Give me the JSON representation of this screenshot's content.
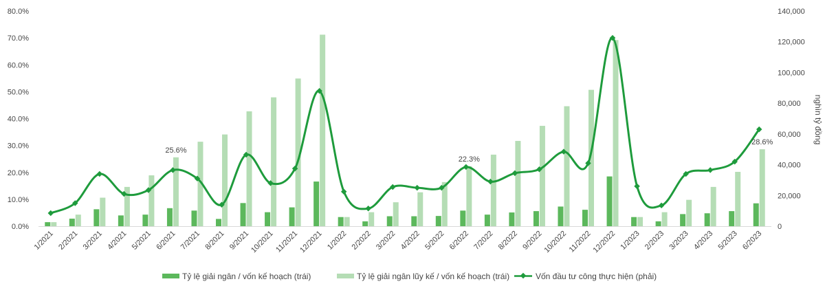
{
  "chart_data": {
    "type": "bar+line",
    "categories": [
      "1/2021",
      "2/2021",
      "3/2021",
      "4/2021",
      "5/2021",
      "6/2021",
      "7/2021",
      "8/2021",
      "9/2021",
      "10/2021",
      "11/2021",
      "12/2021",
      "1/2022",
      "2/2022",
      "3/2022",
      "4/2022",
      "5/2022",
      "6/2022",
      "7/2022",
      "8/2022",
      "9/2022",
      "10/2022",
      "11/2022",
      "12/2022",
      "1/2023",
      "2/2023",
      "3/2023",
      "4/2023",
      "5/2023",
      "6/2023"
    ],
    "series": [
      {
        "name": "Tỷ lệ giải ngân / vốn kế hoạch (trái)",
        "kind": "bar",
        "axis": "left",
        "color": "#5cb85c",
        "values": [
          1.5,
          2.8,
          6.3,
          4.0,
          4.3,
          6.7,
          5.8,
          2.7,
          8.6,
          5.2,
          7.0,
          16.6,
          3.4,
          1.8,
          3.7,
          3.7,
          3.8,
          5.8,
          4.3,
          5.1,
          5.6,
          7.3,
          6.1,
          18.5,
          3.4,
          1.8,
          4.5,
          4.8,
          5.6,
          8.5
        ]
      },
      {
        "name": "Tỷ lệ giải ngân lũy kế / vốn kế hoạch (trái)",
        "kind": "bar",
        "axis": "left",
        "color": "#b5ddb5",
        "values": [
          1.5,
          4.3,
          10.6,
          14.6,
          18.9,
          25.6,
          31.4,
          34.1,
          42.7,
          47.9,
          54.9,
          71.2,
          3.4,
          5.2,
          8.9,
          12.6,
          16.4,
          22.3,
          26.6,
          31.7,
          37.3,
          44.6,
          50.7,
          69.2,
          3.4,
          5.2,
          9.8,
          14.6,
          20.2,
          28.6
        ]
      },
      {
        "name": "Vốn đầu tư công thực hiện (phải)",
        "kind": "line",
        "axis": "right",
        "color": "#1e9b3c",
        "values": [
          8500,
          15000,
          34000,
          21000,
          23500,
          36500,
          31000,
          14000,
          46500,
          28000,
          37500,
          88000,
          22500,
          11500,
          25500,
          25000,
          25000,
          38500,
          29000,
          34500,
          37000,
          48500,
          41000,
          122500,
          26000,
          13500,
          34000,
          36500,
          42000,
          63000
        ]
      }
    ],
    "annotations": [
      {
        "category": "6/2021",
        "text": "25.6%"
      },
      {
        "category": "6/2022",
        "text": "22.3%"
      },
      {
        "category": "6/2023",
        "text": "28.6%"
      }
    ],
    "left_axis": {
      "ylim": [
        0,
        80
      ],
      "ticks": [
        "0.0%",
        "10.0%",
        "20.0%",
        "30.0%",
        "40.0%",
        "50.0%",
        "60.0%",
        "70.0%",
        "80.0%"
      ]
    },
    "right_axis": {
      "label": "nghìn tỷ đồng",
      "ylim": [
        0,
        140000
      ],
      "ticks": [
        "0",
        "20,000",
        "40,000",
        "60,000",
        "80,000",
        "100,000",
        "120,000",
        "140,000"
      ]
    },
    "grid": false,
    "legend_position": "bottom"
  }
}
